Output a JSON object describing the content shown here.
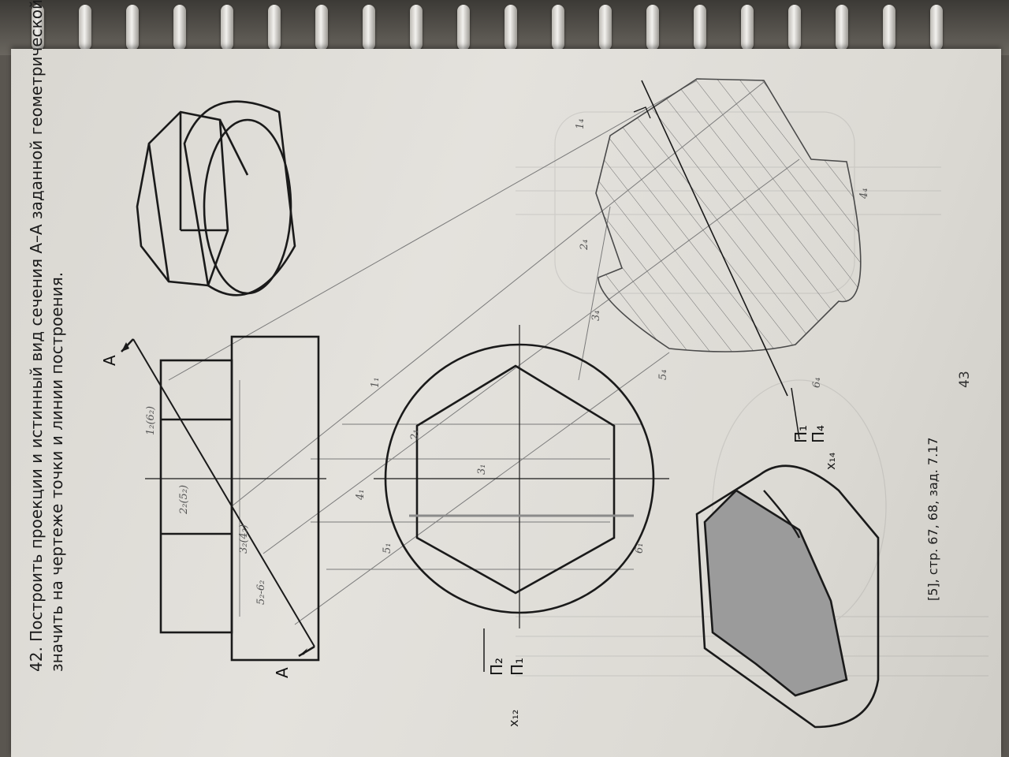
{
  "task": {
    "number": "42.",
    "line1": "Построить проекции и истинный вид сечения А–А заданной геометрической фигуры. Обо-",
    "line2": "значить на чертеже точки и линии построения."
  },
  "labels": {
    "section_mark": "А",
    "plane_frontal": "П₂",
    "plane_horizontal": "П₁",
    "plane_new": "П₄",
    "axis_x12": "x₁₂",
    "axis_x14": "x₁₄"
  },
  "points": [
    "1₂(6₂)",
    "2₂(5₂)",
    "3₂(4₂)",
    "5₂-6₂",
    "1₁",
    "2₁",
    "3₁",
    "4₁",
    "5₁",
    "6₁",
    "1₄",
    "2₄",
    "3₄",
    "4₄",
    "5₄",
    "6₄"
  ],
  "reference": "[5], стр. 67, 68, зад. 7.17",
  "page_number": "43",
  "colors": {
    "ink": "#1a1a1a",
    "pencil": "#6d6d6d",
    "section_fill": "#9b9b9b",
    "paper": "#e0ded9"
  }
}
